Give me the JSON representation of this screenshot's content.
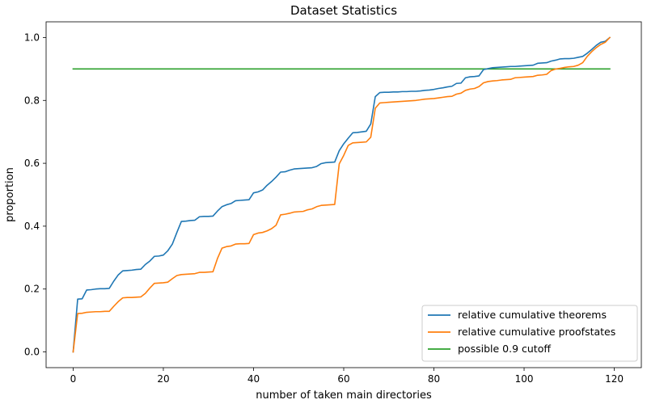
{
  "chart_data": {
    "type": "line",
    "title": "Dataset Statistics",
    "xlabel": "number of taken main directories",
    "ylabel": "proportion",
    "xlim": [
      -6,
      126
    ],
    "ylim": [
      -0.05,
      1.05
    ],
    "xticks": [
      0,
      20,
      40,
      60,
      80,
      100,
      120
    ],
    "xtick_labels": [
      "0",
      "20",
      "40",
      "60",
      "80",
      "100",
      "120"
    ],
    "yticks": [
      0.0,
      0.2,
      0.4,
      0.6,
      0.8,
      1.0
    ],
    "ytick_labels": [
      "0.0",
      "0.2",
      "0.4",
      "0.6",
      "0.8",
      "1.0"
    ],
    "grid": false,
    "legend_position": "lower-right",
    "series": [
      {
        "name": "relative cumulative theorems",
        "color": "#1f77b4",
        "x": [
          0,
          1,
          2,
          3,
          4,
          5,
          6,
          7,
          8,
          9,
          10,
          11,
          12,
          13,
          14,
          15,
          16,
          17,
          18,
          19,
          20,
          21,
          22,
          23,
          24,
          25,
          26,
          27,
          28,
          29,
          30,
          31,
          32,
          33,
          34,
          35,
          36,
          37,
          38,
          39,
          40,
          41,
          42,
          43,
          44,
          45,
          46,
          47,
          48,
          49,
          50,
          51,
          52,
          53,
          54,
          55,
          56,
          57,
          58,
          59,
          60,
          61,
          62,
          63,
          64,
          65,
          66,
          67,
          68,
          69,
          70,
          71,
          72,
          73,
          74,
          75,
          76,
          77,
          78,
          79,
          80,
          81,
          82,
          83,
          84,
          85,
          86,
          87,
          88,
          89,
          90,
          91,
          92,
          93,
          94,
          95,
          96,
          97,
          98,
          99,
          100,
          101,
          102,
          103,
          104,
          105,
          106,
          107,
          108,
          109,
          110,
          111,
          112,
          113,
          114,
          115,
          116,
          117,
          118,
          119
        ],
        "y": [
          0.0,
          0.168,
          0.169,
          0.197,
          0.198,
          0.2,
          0.201,
          0.201,
          0.202,
          0.225,
          0.245,
          0.258,
          0.259,
          0.26,
          0.262,
          0.263,
          0.278,
          0.289,
          0.304,
          0.305,
          0.308,
          0.322,
          0.343,
          0.38,
          0.415,
          0.416,
          0.418,
          0.419,
          0.43,
          0.431,
          0.431,
          0.432,
          0.448,
          0.462,
          0.468,
          0.472,
          0.481,
          0.482,
          0.483,
          0.484,
          0.506,
          0.509,
          0.515,
          0.53,
          0.542,
          0.556,
          0.572,
          0.573,
          0.578,
          0.582,
          0.583,
          0.584,
          0.585,
          0.586,
          0.59,
          0.599,
          0.602,
          0.603,
          0.604,
          0.64,
          0.662,
          0.68,
          0.697,
          0.698,
          0.7,
          0.702,
          0.725,
          0.812,
          0.825,
          0.826,
          0.826,
          0.827,
          0.827,
          0.828,
          0.828,
          0.829,
          0.829,
          0.83,
          0.832,
          0.833,
          0.835,
          0.838,
          0.84,
          0.843,
          0.845,
          0.854,
          0.855,
          0.872,
          0.875,
          0.876,
          0.878,
          0.898,
          0.901,
          0.904,
          0.905,
          0.906,
          0.907,
          0.908,
          0.908,
          0.909,
          0.91,
          0.911,
          0.912,
          0.918,
          0.919,
          0.92,
          0.925,
          0.928,
          0.932,
          0.933,
          0.933,
          0.934,
          0.937,
          0.94,
          0.95,
          0.962,
          0.975,
          0.985,
          0.988,
          1.0
        ]
      },
      {
        "name": "relative cumulative proofstates",
        "color": "#ff7f0e",
        "x": [
          0,
          1,
          2,
          3,
          4,
          5,
          6,
          7,
          8,
          9,
          10,
          11,
          12,
          13,
          14,
          15,
          16,
          17,
          18,
          19,
          20,
          21,
          22,
          23,
          24,
          25,
          26,
          27,
          28,
          29,
          30,
          31,
          32,
          33,
          34,
          35,
          36,
          37,
          38,
          39,
          40,
          41,
          42,
          43,
          44,
          45,
          46,
          47,
          48,
          49,
          50,
          51,
          52,
          53,
          54,
          55,
          56,
          57,
          58,
          59,
          60,
          61,
          62,
          63,
          64,
          65,
          66,
          67,
          68,
          69,
          70,
          71,
          72,
          73,
          74,
          75,
          76,
          77,
          78,
          79,
          80,
          81,
          82,
          83,
          84,
          85,
          86,
          87,
          88,
          89,
          90,
          91,
          92,
          93,
          94,
          95,
          96,
          97,
          98,
          99,
          100,
          101,
          102,
          103,
          104,
          105,
          106,
          107,
          108,
          109,
          110,
          111,
          112,
          113,
          114,
          115,
          116,
          117,
          118,
          119
        ],
        "y": [
          0.0,
          0.122,
          0.123,
          0.126,
          0.127,
          0.128,
          0.128,
          0.129,
          0.129,
          0.145,
          0.16,
          0.172,
          0.173,
          0.173,
          0.174,
          0.175,
          0.186,
          0.203,
          0.218,
          0.219,
          0.22,
          0.222,
          0.233,
          0.243,
          0.246,
          0.247,
          0.248,
          0.249,
          0.253,
          0.253,
          0.254,
          0.255,
          0.297,
          0.33,
          0.335,
          0.337,
          0.343,
          0.344,
          0.344,
          0.345,
          0.373,
          0.378,
          0.38,
          0.385,
          0.392,
          0.403,
          0.436,
          0.438,
          0.441,
          0.445,
          0.446,
          0.447,
          0.452,
          0.455,
          0.462,
          0.466,
          0.467,
          0.468,
          0.469,
          0.598,
          0.625,
          0.657,
          0.665,
          0.666,
          0.667,
          0.668,
          0.683,
          0.775,
          0.792,
          0.793,
          0.794,
          0.795,
          0.796,
          0.797,
          0.798,
          0.799,
          0.8,
          0.802,
          0.804,
          0.805,
          0.806,
          0.808,
          0.81,
          0.812,
          0.813,
          0.82,
          0.823,
          0.832,
          0.836,
          0.838,
          0.844,
          0.856,
          0.86,
          0.862,
          0.863,
          0.865,
          0.866,
          0.867,
          0.872,
          0.873,
          0.874,
          0.875,
          0.876,
          0.88,
          0.881,
          0.883,
          0.895,
          0.9,
          0.902,
          0.905,
          0.907,
          0.908,
          0.912,
          0.92,
          0.94,
          0.955,
          0.968,
          0.978,
          0.985,
          1.0
        ]
      },
      {
        "name": "possible 0.9 cutoff",
        "color": "#2ca02c",
        "x": [
          0,
          119
        ],
        "y": [
          0.9,
          0.9
        ]
      }
    ]
  }
}
